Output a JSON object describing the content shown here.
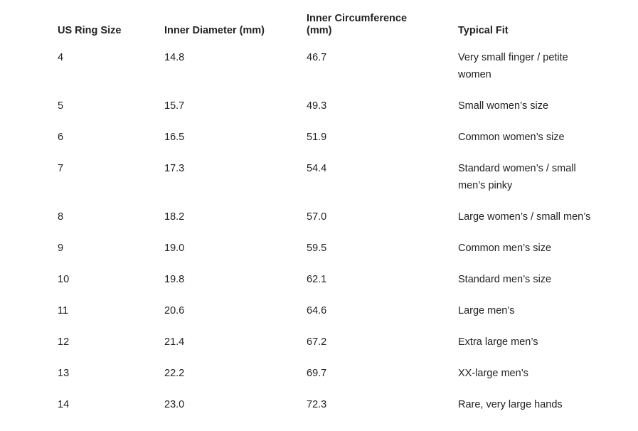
{
  "table": {
    "header": [
      "US Ring Size",
      "Inner Diameter (mm)",
      "Inner Circumference (mm)",
      "Typical Fit"
    ],
    "rows": [
      [
        "4",
        "14.8",
        "46.7",
        "Very small finger / petite women"
      ],
      [
        "5",
        "15.7",
        "49.3",
        "Small women’s size"
      ],
      [
        "6",
        "16.5",
        "51.9",
        "Common women’s size"
      ],
      [
        "7",
        "17.3",
        "54.4",
        "Standard women’s / small men’s pinky"
      ],
      [
        "8",
        "18.2",
        "57.0",
        "Large women’s / small men’s"
      ],
      [
        "9",
        "19.0",
        "59.5",
        "Common men’s size"
      ],
      [
        "10",
        "19.8",
        "62.1",
        "Standard men’s size"
      ],
      [
        "11",
        "20.6",
        "64.6",
        "Large men’s"
      ],
      [
        "12",
        "21.4",
        "67.2",
        "Extra large men’s"
      ],
      [
        "13",
        "22.2",
        "69.7",
        "XX-large men’s"
      ],
      [
        "14",
        "23.0",
        "72.3",
        "Rare, very large hands"
      ]
    ]
  }
}
